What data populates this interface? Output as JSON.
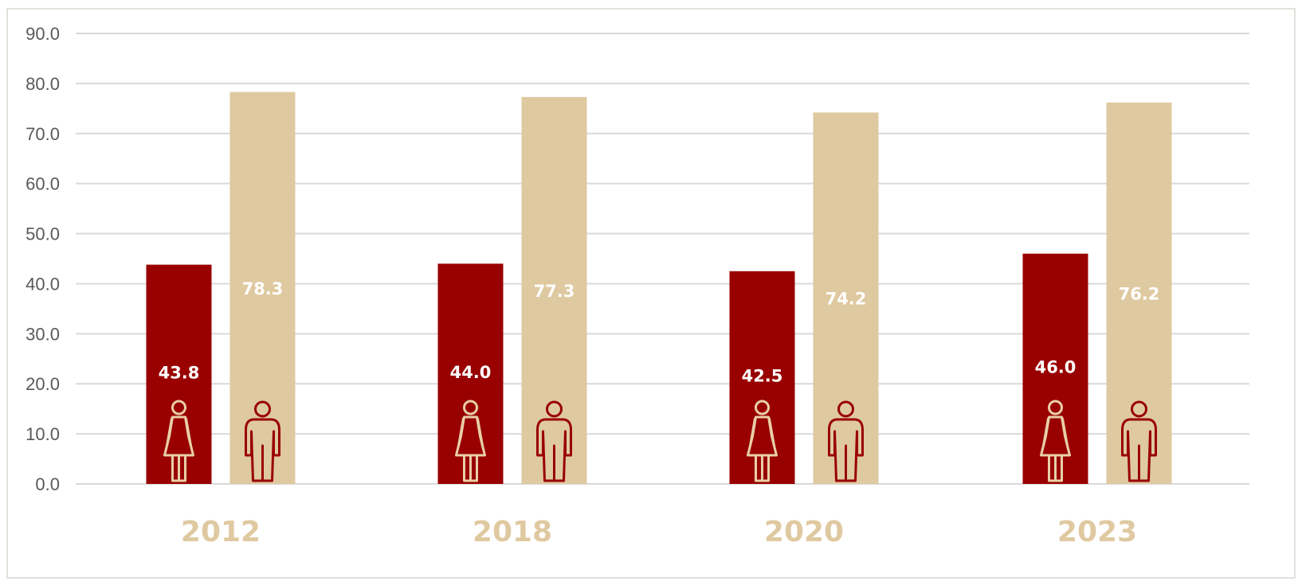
{
  "colors": {
    "female_bar": "#990000",
    "male_bar": "#dfc9a0",
    "female_icon": "#e8cfa8",
    "male_icon": "#990000",
    "gridline": "#d9d9d9",
    "category_label": "#dfc9a0"
  },
  "icons": {
    "female": "female-person-icon",
    "male": "male-person-icon"
  },
  "chart_data": {
    "type": "bar",
    "categories": [
      "2012",
      "2018",
      "2020",
      "2023"
    ],
    "series": [
      {
        "values": [
          43.8,
          44.0,
          42.5,
          46.0
        ]
      },
      {
        "values": [
          78.3,
          77.3,
          74.2,
          76.2
        ]
      }
    ],
    "value_labels": [
      [
        "43.8",
        "44.0",
        "42.5",
        "46.0"
      ],
      [
        "78.3",
        "77.3",
        "74.2",
        "76.2"
      ]
    ],
    "y_ticks": [
      "0.0",
      "10.0",
      "20.0",
      "30.0",
      "40.0",
      "50.0",
      "60.0",
      "70.0",
      "80.0",
      "90.0"
    ],
    "ylim": [
      0,
      90
    ],
    "grid": true,
    "legend": "none",
    "title": "",
    "xlabel": "",
    "ylabel": ""
  }
}
